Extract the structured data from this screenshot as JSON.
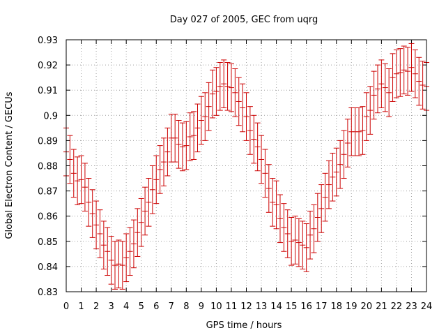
{
  "chart_data": {
    "type": "scatter",
    "title": "Day 027 of 2005, GEC from uqrg",
    "xlabel": "GPS time / hours",
    "ylabel": "Global Electron Content / GECUs",
    "xlim": [
      0,
      24
    ],
    "ylim": [
      0.83,
      0.93
    ],
    "x_ticks": [
      0,
      1,
      2,
      3,
      4,
      5,
      6,
      7,
      8,
      9,
      10,
      11,
      12,
      13,
      14,
      15,
      16,
      17,
      18,
      19,
      20,
      21,
      22,
      23,
      24
    ],
    "x_tick_labels": [
      "0",
      "1",
      "2",
      "3",
      "4",
      "5",
      "6",
      "7",
      "8",
      "9",
      "10",
      "11",
      "12",
      "13",
      "14",
      "15",
      "16",
      "17",
      "18",
      "19",
      "20",
      "21",
      "22",
      "23",
      "24"
    ],
    "y_ticks": [
      0.83,
      0.84,
      0.85,
      0.86,
      0.87,
      0.88,
      0.89,
      0.9,
      0.91,
      0.92,
      0.93
    ],
    "y_tick_labels": [
      "0.83",
      "0.84",
      "0.85",
      "0.86",
      "0.87",
      "0.88",
      "0.89",
      "0.9",
      "0.91",
      "0.92",
      "0.93"
    ],
    "grid": true,
    "series": [
      {
        "name": "GEC",
        "color": "#cc0000",
        "error": 0.0095,
        "x": [
          0,
          0.25,
          0.5,
          0.75,
          1,
          1.25,
          1.5,
          1.75,
          2,
          2.25,
          2.5,
          2.75,
          3,
          3.25,
          3.5,
          3.75,
          4,
          4.25,
          4.5,
          4.75,
          5,
          5.25,
          5.5,
          5.75,
          6,
          6.25,
          6.5,
          6.75,
          7,
          7.25,
          7.5,
          7.75,
          8,
          8.25,
          8.5,
          8.75,
          9,
          9.25,
          9.5,
          9.75,
          10,
          10.25,
          10.5,
          10.75,
          11,
          11.25,
          11.5,
          11.75,
          12,
          12.25,
          12.5,
          12.75,
          13,
          13.25,
          13.5,
          13.75,
          14,
          14.25,
          14.5,
          14.75,
          15,
          15.25,
          15.5,
          15.75,
          16,
          16.25,
          16.5,
          16.75,
          17,
          17.25,
          17.5,
          17.75,
          18,
          18.25,
          18.5,
          18.75,
          19,
          19.25,
          19.5,
          19.75,
          20,
          20.25,
          20.5,
          20.75,
          21,
          21.25,
          21.5,
          21.75,
          22,
          22.25,
          22.5,
          22.75,
          23,
          23.25,
          23.5,
          23.75,
          24
        ],
        "values": [
          0.8855,
          0.8825,
          0.877,
          0.874,
          0.8745,
          0.8715,
          0.8655,
          0.861,
          0.8565,
          0.853,
          0.8485,
          0.846,
          0.8425,
          0.8405,
          0.841,
          0.8405,
          0.8435,
          0.846,
          0.849,
          0.8535,
          0.8575,
          0.862,
          0.8655,
          0.8705,
          0.8745,
          0.8785,
          0.8815,
          0.8855,
          0.891,
          0.891,
          0.8885,
          0.8875,
          0.888,
          0.8915,
          0.892,
          0.895,
          0.898,
          0.8995,
          0.9035,
          0.9085,
          0.9095,
          0.9115,
          0.9125,
          0.9115,
          0.911,
          0.909,
          0.9055,
          0.903,
          0.8995,
          0.894,
          0.8905,
          0.8875,
          0.8825,
          0.877,
          0.871,
          0.8655,
          0.8645,
          0.859,
          0.8555,
          0.853,
          0.85,
          0.8505,
          0.8495,
          0.8485,
          0.8475,
          0.8525,
          0.855,
          0.8595,
          0.863,
          0.8675,
          0.8725,
          0.8755,
          0.8775,
          0.8805,
          0.8845,
          0.889,
          0.8935,
          0.8935,
          0.8935,
          0.894,
          0.8995,
          0.902,
          0.908,
          0.9105,
          0.9125,
          0.911,
          0.909,
          0.915,
          0.9165,
          0.917,
          0.918,
          0.9175,
          0.919,
          0.9165,
          0.9135,
          0.912,
          0.9115
        ]
      }
    ]
  }
}
